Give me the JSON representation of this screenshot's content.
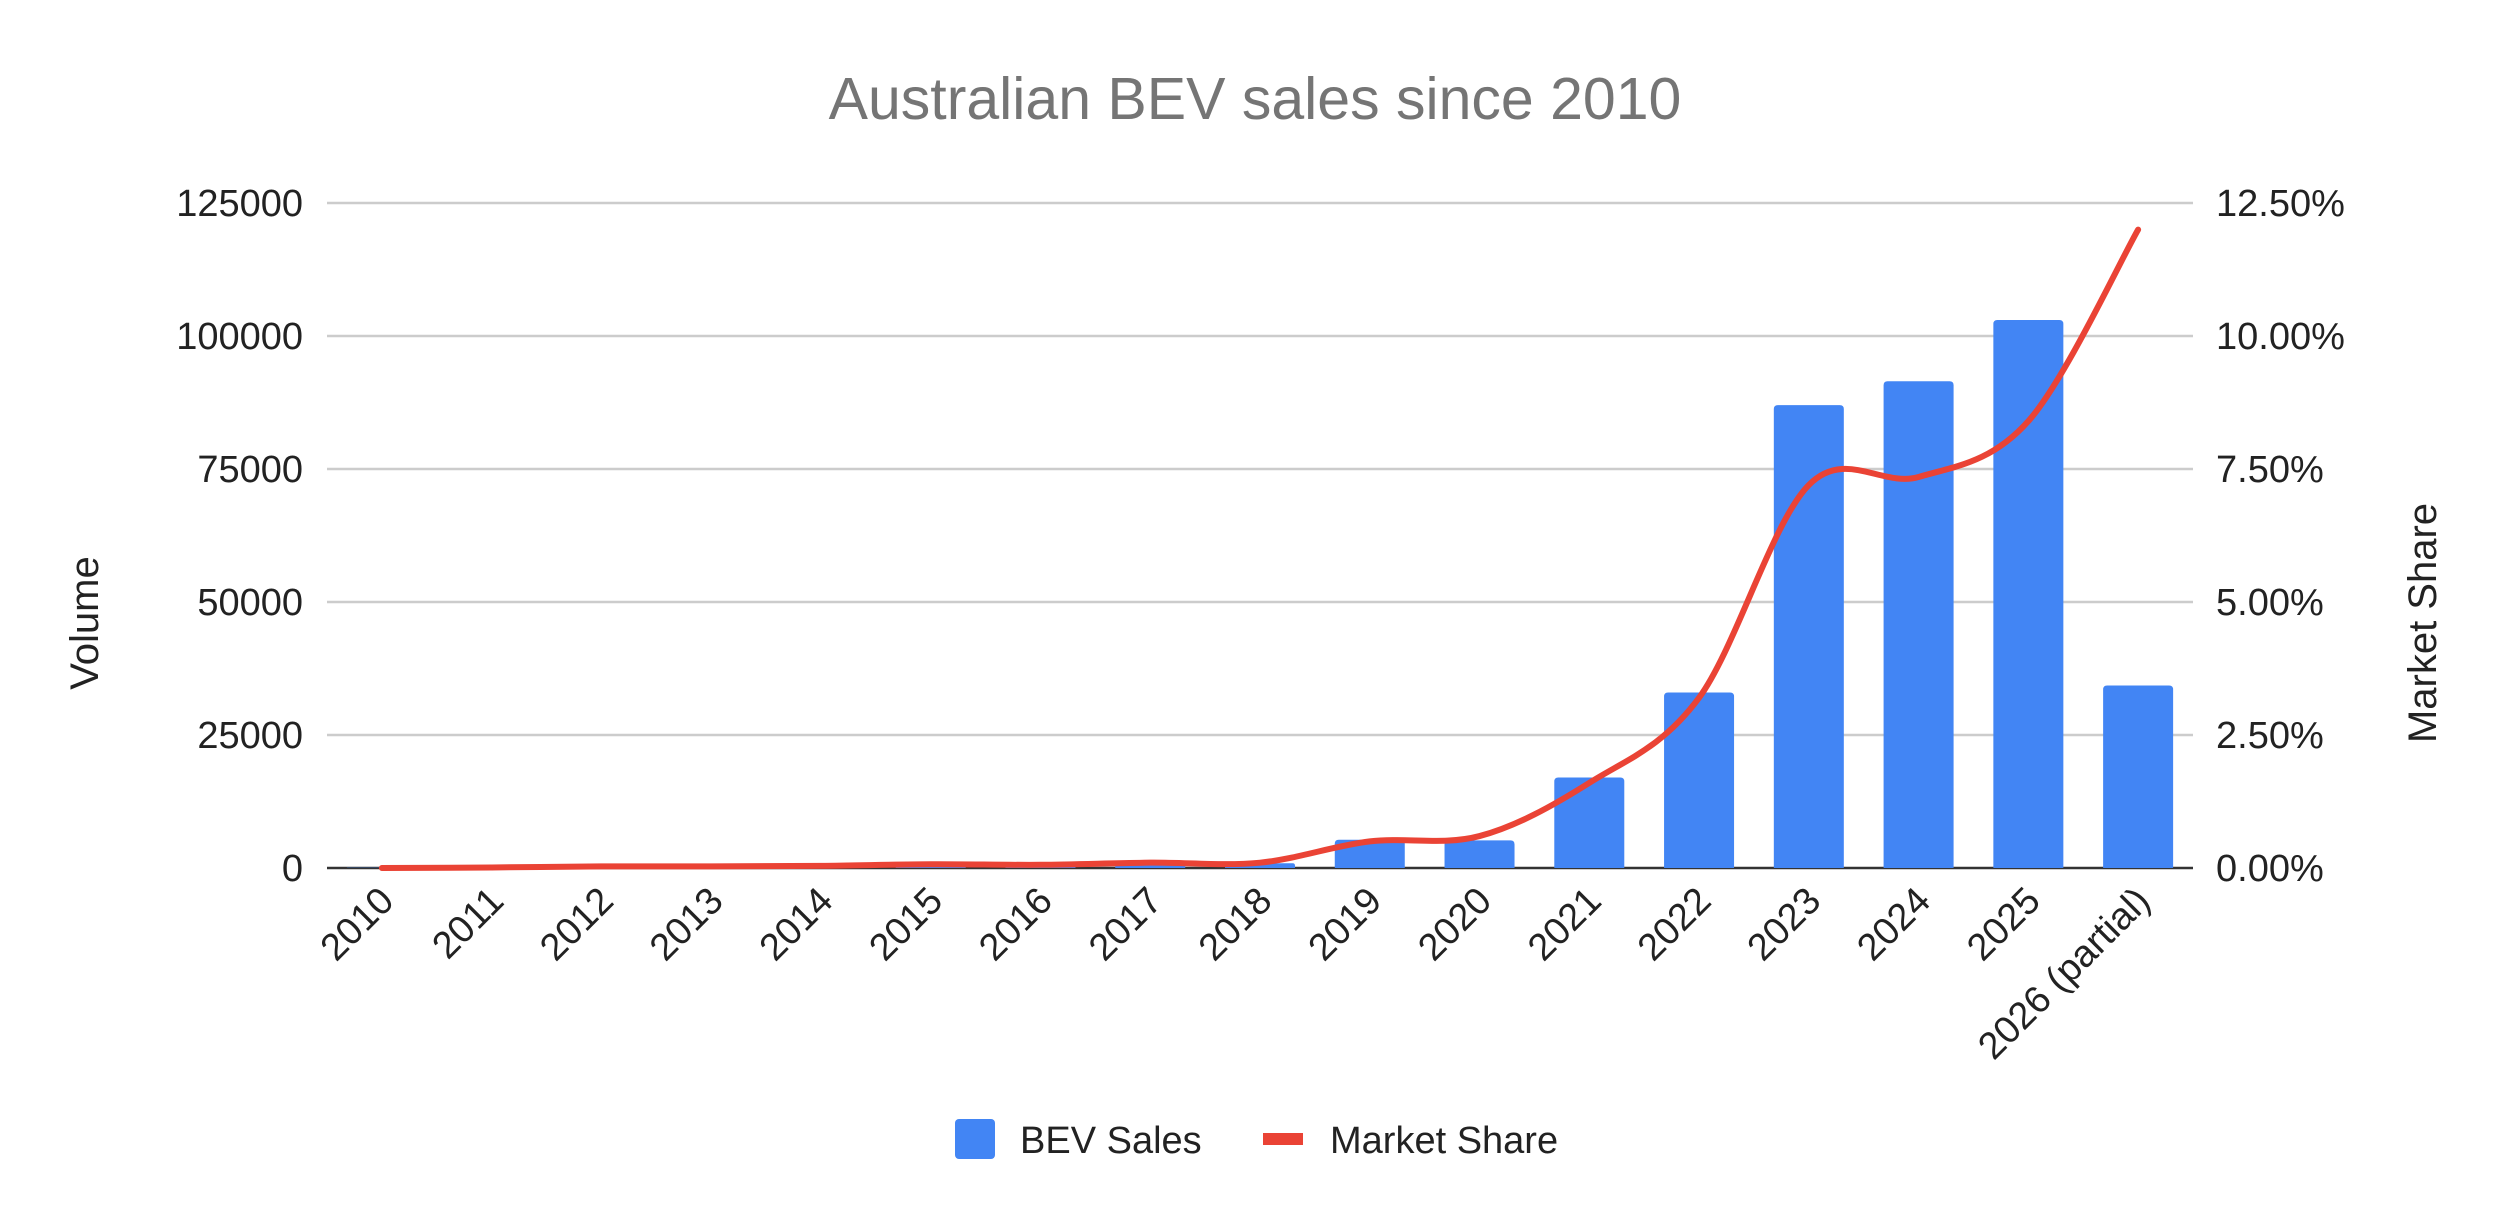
{
  "chart_data": {
    "type": "bar",
    "title": "Australian BEV sales since 2010",
    "xlabel": "",
    "ylabel": "Volume",
    "y2label": "Market Share",
    "categories": [
      "2010",
      "2011",
      "2012",
      "2013",
      "2014",
      "2015",
      "2016",
      "2017",
      "2018",
      "2019",
      "2020",
      "2021",
      "2022",
      "2023",
      "2024",
      "2025",
      "2026 (partial)"
    ],
    "series": [
      {
        "name": "BEV Sales",
        "type": "bar",
        "axis": "left",
        "color": "#4285f4",
        "values": [
          50,
          50,
          250,
          300,
          400,
          700,
          500,
          800,
          900,
          5300,
          5200,
          17000,
          33000,
          87000,
          91500,
          103000,
          34300
        ]
      },
      {
        "name": "Market Share",
        "type": "line",
        "axis": "right",
        "color": "#ea4335",
        "values": [
          0.0,
          0.01,
          0.03,
          0.03,
          0.04,
          0.07,
          0.06,
          0.1,
          0.1,
          0.5,
          0.6,
          1.6,
          3.2,
          7.2,
          7.35,
          8.4,
          12.0
        ]
      }
    ],
    "ylim": [
      0,
      125000
    ],
    "y_ticks": [
      "0",
      "25000",
      "50000",
      "75000",
      "100000",
      "125000"
    ],
    "y2lim": [
      0,
      12.5
    ],
    "y2_ticks": [
      "0.00%",
      "2.50%",
      "5.00%",
      "7.50%",
      "10.00%",
      "12.50%"
    ],
    "grid": true,
    "legend": "bottom"
  }
}
